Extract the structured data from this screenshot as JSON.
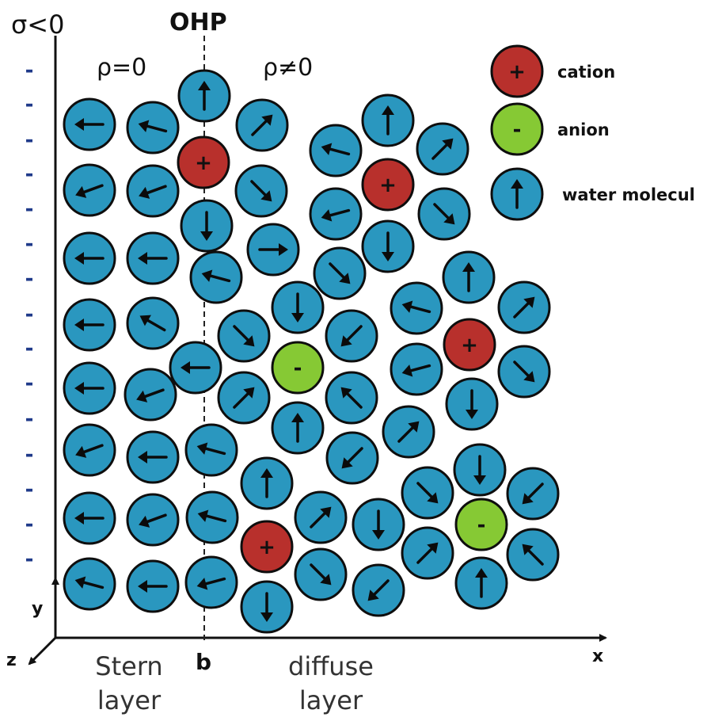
{
  "labels": {
    "surface_charge": "σ<0",
    "ohp": "OHP",
    "rho_zero": "ρ=0",
    "rho_nonzero": "ρ≠0",
    "axis_y": "y",
    "axis_z": "z",
    "axis_x": "x",
    "b": "b",
    "stern_line1": "Stern",
    "stern_line2": "layer",
    "diffuse_line1": "diffuse",
    "diffuse_line2": "layer",
    "surface_minus": "-"
  },
  "legend": [
    {
      "kind": "cation",
      "symbol": "+",
      "label": "cation"
    },
    {
      "kind": "anion",
      "symbol": "-",
      "label": "anion"
    },
    {
      "kind": "water",
      "symbol": "",
      "label": "water molecul"
    }
  ],
  "colors": {
    "water": "#2a97bf",
    "cation": "#b8302c",
    "anion": "#86c934",
    "outline": "#0e0e0e",
    "surface_minus": "#1f3a8a",
    "text": "#111111",
    "label_gray": "#333333"
  },
  "species": {
    "cation": "+",
    "anion": "-"
  },
  "icons": {
    "water": "water-molecule-icon",
    "cation": "cation-icon",
    "anion": "anion-icon"
  },
  "particle_counts": {
    "cations": 4,
    "anions": 2,
    "water_molecules": 59
  }
}
